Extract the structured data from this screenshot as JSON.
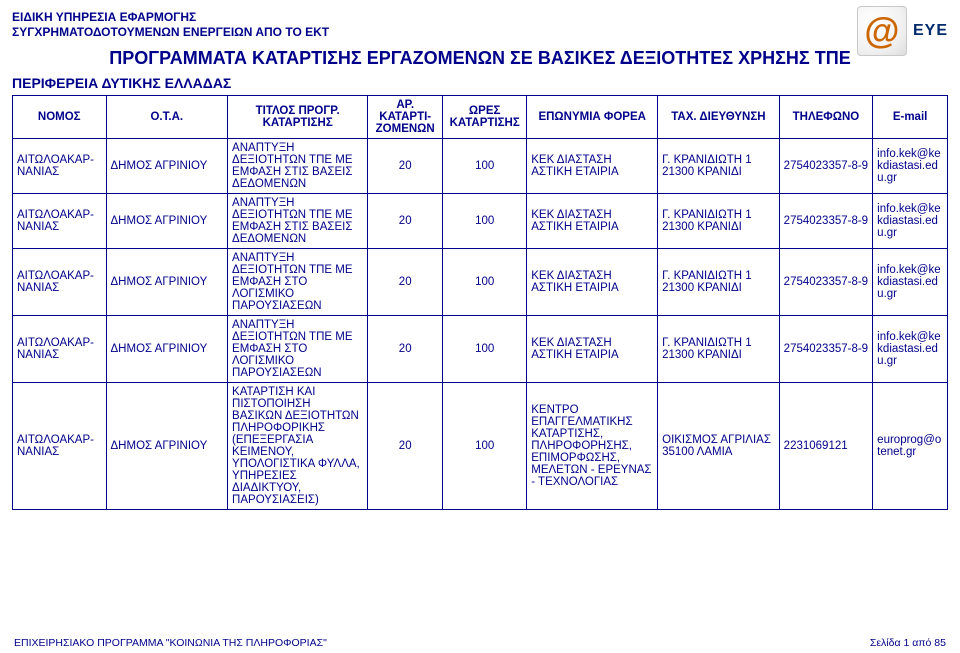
{
  "header": {
    "line1": "ΕΙΔΙΚΗ ΥΠΗΡΕΣΙΑ ΕΦΑΡΜΟΓΗΣ",
    "line2": "ΣΥΓΧΡΗΜΑΤΟΔΟΤΟΥΜΕΝΩΝ ΕΝΕΡΓΕΙΩΝ ΑΠΟ ΤΟ ΕΚΤ",
    "title_main": "ΠΡΟΓΡΑΜΜΑΤΑ ΚΑΤΑΡΤΙΣΗΣ ΕΡΓΑΖΟΜΕΝΩΝ ΣΕ ΒΑΣΙΚΕΣ ΔΕΞΙΟΤΗΤΕΣ ΧΡΗΣΗΣ ΤΠΕ",
    "region_label": "ΠΕΡΙΦΕΡΕΙΑ ΔΥΤΙΚΗΣ ΕΛΛΑΔΑΣ",
    "logo_at": "@",
    "logo_eye": "EYE"
  },
  "columns": [
    {
      "key": "nomos",
      "label": "ΝΟΜΟΣ",
      "width": "10%"
    },
    {
      "key": "ota",
      "label": "Ο.Τ.Α.",
      "width": "13%"
    },
    {
      "key": "title",
      "label": "ΤΙΤΛΟΣ ΠΡΟΓΡ. ΚΑΤΑΡΤΙΣΗΣ",
      "width": "15%"
    },
    {
      "key": "number",
      "label": "ΑΡ. ΚΑΤΑΡΤΙ-ΖΟΜΕΝΩΝ",
      "width": "8%"
    },
    {
      "key": "hours",
      "label": "ΩΡΕΣ ΚΑΤΑΡΤΙΣΗΣ",
      "width": "9%"
    },
    {
      "key": "entity",
      "label": "ΕΠΩΝΥΜΙΑ ΦΟΡΕΑ",
      "width": "14%"
    },
    {
      "key": "address",
      "label": "ΤΑΧ. ΔΙΕΥΘΥΝΣΗ",
      "width": "13%"
    },
    {
      "key": "phone",
      "label": "ΤΗΛΕΦΩΝΟ",
      "width": "10%"
    },
    {
      "key": "email",
      "label": "E-mail",
      "width": "8%"
    }
  ],
  "center_keys": [
    "number",
    "hours"
  ],
  "rows": [
    {
      "nomos": "ΑΙΤΩΛΟΑΚΑΡ-ΝΑΝΙΑΣ",
      "ota": "ΔΗΜΟΣ ΑΓΡΙΝΙΟΥ",
      "title": "ΑΝΑΠΤΥΞΗ ΔΕΞΙΟΤΗΤΩΝ ΤΠΕ ΜΕ ΕΜΦΑΣΗ ΣΤΙΣ ΒΑΣΕΙΣ ΔΕΔΟΜΕΝΩΝ",
      "number": "20",
      "hours": "100",
      "entity": "ΚΕΚ ΔΙΑΣΤΑΣΗ ΑΣΤΙΚΗ ΕΤΑΙΡΙΑ",
      "address": "Γ. ΚΡΑΝΙΔΙΩΤΗ 1 21300 ΚΡΑΝΙΔΙ",
      "phone": "2754023357-8-9",
      "email": "info.kek@kekdiastasi.edu.gr"
    },
    {
      "nomos": "ΑΙΤΩΛΟΑΚΑΡ-ΝΑΝΙΑΣ",
      "ota": "ΔΗΜΟΣ ΑΓΡΙΝΙΟΥ",
      "title": "ΑΝΑΠΤΥΞΗ ΔΕΞΙΟΤΗΤΩΝ ΤΠΕ ΜΕ ΕΜΦΑΣΗ ΣΤΙΣ ΒΑΣΕΙΣ ΔΕΔΟΜΕΝΩΝ",
      "number": "20",
      "hours": "100",
      "entity": "ΚΕΚ ΔΙΑΣΤΑΣΗ ΑΣΤΙΚΗ ΕΤΑΙΡΙΑ",
      "address": "Γ. ΚΡΑΝΙΔΙΩΤΗ 1 21300 ΚΡΑΝΙΔΙ",
      "phone": "2754023357-8-9",
      "email": "info.kek@kekdiastasi.edu.gr"
    },
    {
      "nomos": "ΑΙΤΩΛΟΑΚΑΡ-ΝΑΝΙΑΣ",
      "ota": "ΔΗΜΟΣ ΑΓΡΙΝΙΟΥ",
      "title": "ΑΝΑΠΤΥΞΗ ΔΕΞΙΟΤΗΤΩΝ ΤΠΕ ΜΕ ΕΜΦΑΣΗ ΣΤΟ ΛΟΓΙΣΜΙΚΟ ΠΑΡΟΥΣΙΑΣΕΩΝ",
      "number": "20",
      "hours": "100",
      "entity": "ΚΕΚ ΔΙΑΣΤΑΣΗ ΑΣΤΙΚΗ ΕΤΑΙΡΙΑ",
      "address": "Γ. ΚΡΑΝΙΔΙΩΤΗ 1 21300 ΚΡΑΝΙΔΙ",
      "phone": "2754023357-8-9",
      "email": "info.kek@kekdiastasi.edu.gr"
    },
    {
      "nomos": "ΑΙΤΩΛΟΑΚΑΡ-ΝΑΝΙΑΣ",
      "ota": "ΔΗΜΟΣ ΑΓΡΙΝΙΟΥ",
      "title": "ΑΝΑΠΤΥΞΗ ΔΕΞΙΟΤΗΤΩΝ ΤΠΕ ΜΕ ΕΜΦΑΣΗ ΣΤΟ ΛΟΓΙΣΜΙΚΟ ΠΑΡΟΥΣΙΑΣΕΩΝ",
      "number": "20",
      "hours": "100",
      "entity": "ΚΕΚ ΔΙΑΣΤΑΣΗ ΑΣΤΙΚΗ ΕΤΑΙΡΙΑ",
      "address": "Γ. ΚΡΑΝΙΔΙΩΤΗ 1 21300 ΚΡΑΝΙΔΙ",
      "phone": "2754023357-8-9",
      "email": "info.kek@kekdiastasi.edu.gr"
    },
    {
      "nomos": "ΑΙΤΩΛΟΑΚΑΡ-ΝΑΝΙΑΣ",
      "ota": "ΔΗΜΟΣ ΑΓΡΙΝΙΟΥ",
      "title": "ΚΑΤΑΡΤΙΣΗ ΚΑΙ ΠΙΣΤΟΠΟΙΗΣΗ ΒΑΣΙΚΩΝ ΔΕΞΙΟΤΗΤΩΝ ΠΛΗΡΟΦΟΡΙΚΗΣ (ΕΠΕΞΕΡΓΑΣΙΑ ΚΕΙΜΕΝΟΥ, ΥΠΟΛΟΓΙΣΤΙΚΑ ΦΥΛΛΑ, ΥΠΗΡΕΣΙΕΣ ΔΙΑΔΙΚΤΥΟΥ, ΠΑΡΟΥΣΙΑΣΕΙΣ)",
      "number": "20",
      "hours": "100",
      "entity": "ΚΕΝΤΡΟ ΕΠΑΓΓΕΛΜΑΤΙΚΗΣ ΚΑΤΑΡΤΙΣΗΣ, ΠΛΗΡΟΦΟΡΗΣΗΣ, ΕΠΙΜΟΡΦΩΣΗΣ, ΜΕΛΕΤΩΝ - ΕΡΕΥΝΑΣ - ΤΕΧΝΟΛΟΓΙΑΣ",
      "address": "ΟΙΚΙΣΜΟΣ ΑΓΡΙΛΙΑΣ 35100 ΛΑΜΙΑ",
      "phone": "2231069121",
      "email": "europrog@otenet.gr"
    }
  ],
  "footer": {
    "left": "ΕΠΙΧΕΙΡΗΣΙΑΚΟ ΠΡΟΓΡΑΜΜΑ \"ΚΟΙΝΩΝΙΑ ΤΗΣ ΠΛΗΡΟΦΟΡΙΑΣ\"",
    "right": "Σελίδα 1 από 85"
  },
  "style": {
    "text_color": "#00008b",
    "background_color": "#ffffff",
    "border_color": "#00008b",
    "header_fontsize": 12,
    "title_fontsize": 18,
    "subtitle_fontsize": 14,
    "table_fontsize": 11.5,
    "footer_fontsize": 10.5
  }
}
